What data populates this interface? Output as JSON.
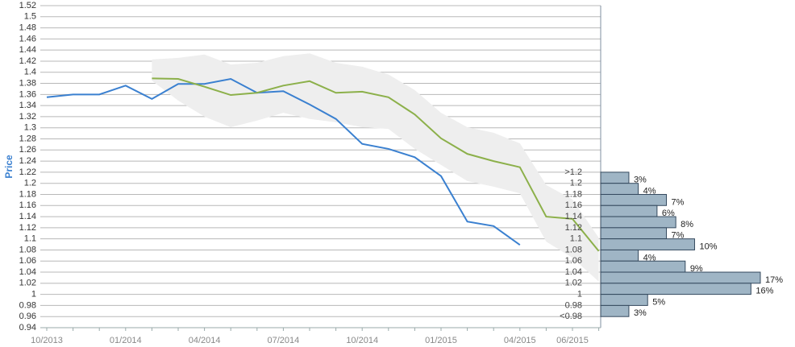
{
  "chart_data": [
    {
      "type": "line",
      "y_label": "Price",
      "categories": [
        "10/2013",
        null,
        null,
        "01/2014",
        null,
        null,
        "04/2014",
        null,
        null,
        "07/2014",
        null,
        null,
        "10/2014",
        null,
        null,
        "01/2015",
        null,
        null,
        "04/2015",
        null,
        "06/2015",
        null
      ],
      "series": [
        {
          "color": "#3a80d0",
          "values": [
            1.355,
            1.36,
            1.36,
            1.376,
            1.352,
            1.379,
            1.379,
            1.388,
            1.363,
            1.366,
            1.342,
            1.316,
            1.271,
            1.262,
            1.247,
            1.213,
            1.131,
            1.123,
            1.089,
            null,
            null,
            null
          ]
        },
        {
          "color": "#8cb04a",
          "values": [
            null,
            null,
            null,
            null,
            1.389,
            1.388,
            1.374,
            1.359,
            1.363,
            1.376,
            1.384,
            1.363,
            1.365,
            1.355,
            1.324,
            1.281,
            1.253,
            1.24,
            1.229,
            1.14,
            1.136,
            1.078
          ]
        }
      ],
      "band": {
        "color": "#eeeeee",
        "upper": [
          null,
          null,
          null,
          null,
          1.423,
          1.426,
          1.432,
          1.414,
          1.417,
          1.429,
          1.434,
          1.417,
          1.41,
          1.396,
          1.368,
          1.327,
          1.301,
          1.291,
          1.272,
          1.197,
          1.171,
          1.102
        ],
        "lower": [
          null,
          null,
          null,
          null,
          1.385,
          1.349,
          1.32,
          1.301,
          1.313,
          1.327,
          1.316,
          1.31,
          1.301,
          1.298,
          1.262,
          1.233,
          1.204,
          1.194,
          1.182,
          1.095,
          1.066,
          1.023
        ]
      },
      "ylim": [
        0.94,
        1.52
      ],
      "yticks": [
        0.94,
        0.96,
        0.98,
        1,
        1.02,
        1.04,
        1.06,
        1.08,
        1.1,
        1.12,
        1.14,
        1.16,
        1.18,
        1.2,
        1.22,
        1.24,
        1.26,
        1.28,
        1.3,
        1.32,
        1.34,
        1.36,
        1.38,
        1.4,
        1.42,
        1.44,
        1.46,
        1.48,
        1.5,
        1.52
      ],
      "grid": true
    },
    {
      "type": "histogram",
      "orientation": "horizontal",
      "color": "#9fb5c5",
      "bins": [
        {
          "value": 1.22,
          "label": ">1.2"
        },
        1.2,
        1.18,
        1.16,
        1.14,
        1.12,
        1.1,
        1.08,
        1.06,
        1.04,
        1.02,
        1,
        0.98,
        {
          "value": 0.96,
          "label": "<0.98"
        }
      ],
      "values": [
        3,
        4,
        7,
        6,
        8,
        7,
        10,
        4,
        9,
        17,
        16,
        5,
        3
      ],
      "value_labels": [
        "3%",
        "4%",
        "7%",
        "6%",
        "8%",
        "7%",
        "10%",
        "4%",
        "9%",
        "17%",
        "16%",
        "5%",
        "3%"
      ]
    }
  ]
}
